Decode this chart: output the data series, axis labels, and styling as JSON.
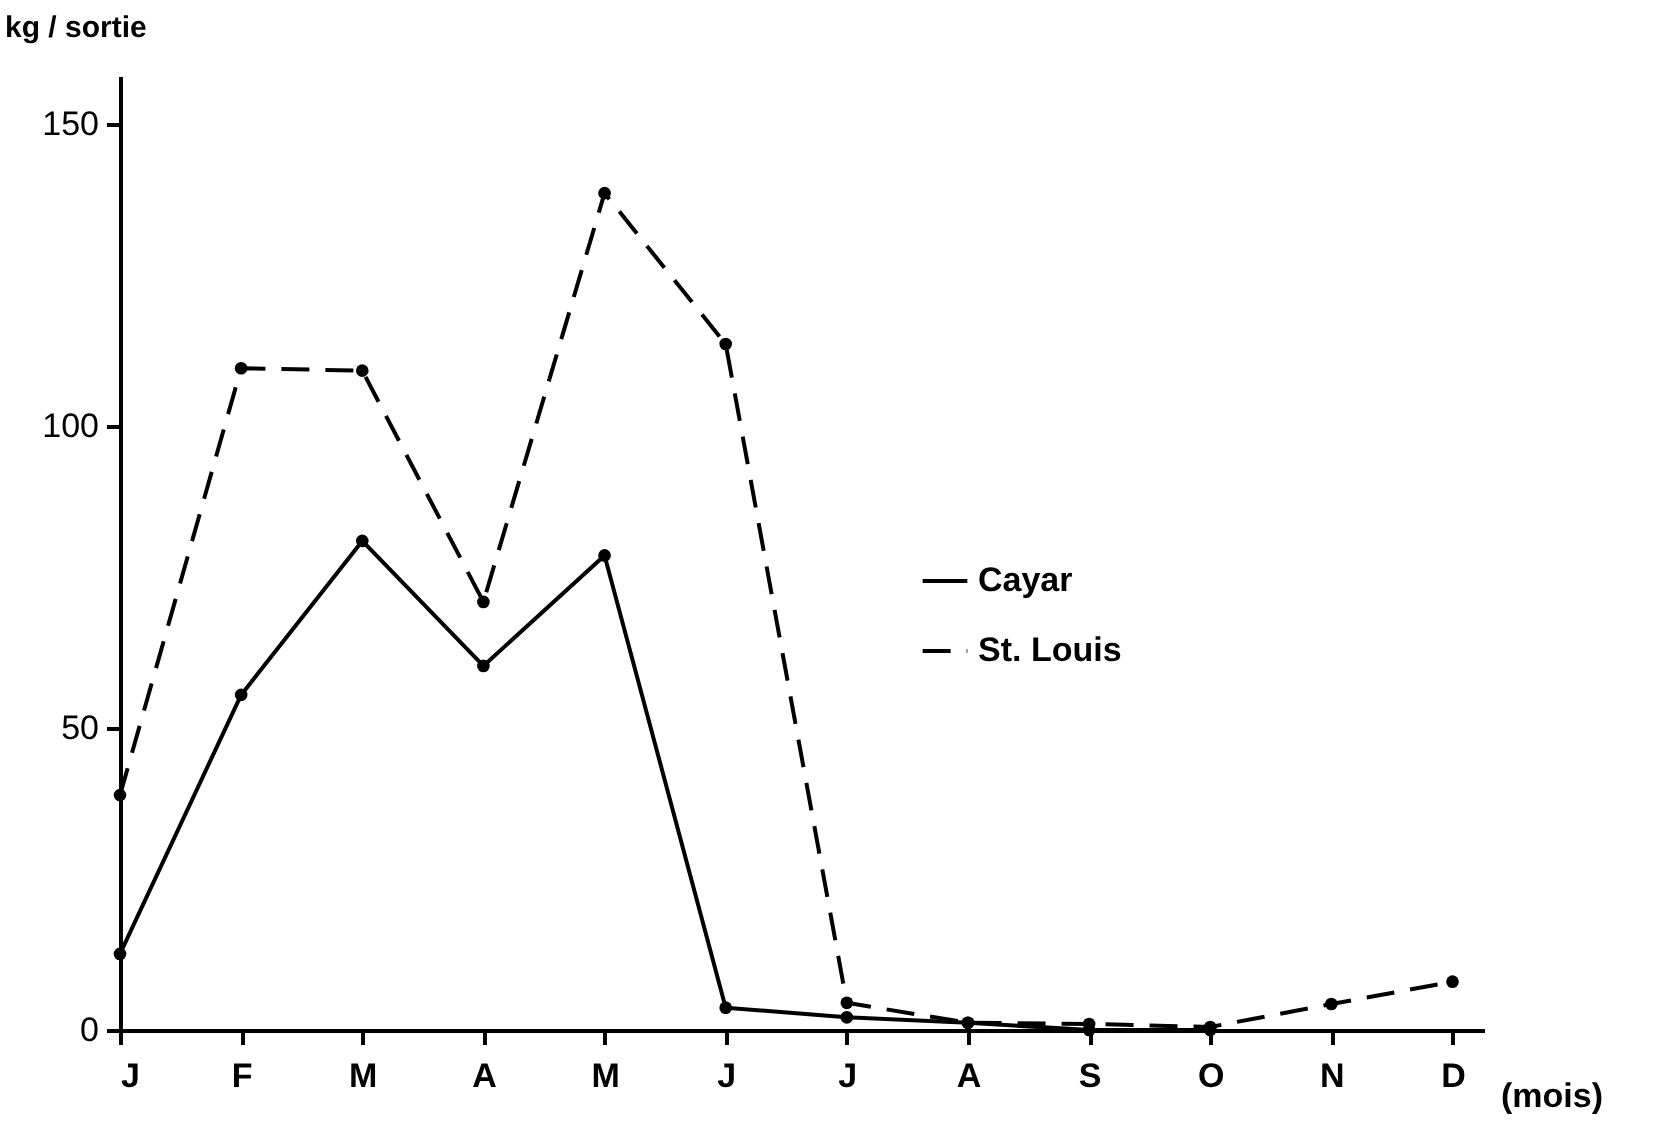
{
  "chart_data": {
    "type": "line",
    "xlabel": "(mois)",
    "ylabel": "kg / sortie",
    "categories": [
      "J",
      "F",
      "M",
      "A",
      "M",
      "J",
      "J",
      "A",
      "S",
      "O",
      "N",
      "D"
    ],
    "series": [
      {
        "name": "Cayar",
        "color": "#000000",
        "line_style": "solid",
        "values": [
          12.6,
          55.5,
          81,
          60.3,
          78.6,
          3.7,
          2.1,
          1.2,
          0,
          0,
          null,
          null
        ]
      },
      {
        "name": "St. Louis",
        "color": "#000000",
        "line_style": "dashed",
        "values": [
          38.9,
          109.6,
          109.2,
          70.9,
          138.6,
          113.6,
          4.5,
          1.2,
          1,
          0.5,
          4.3,
          8
        ]
      }
    ],
    "ylim": [
      0,
      158
    ],
    "yticks": [
      0,
      50,
      100,
      150
    ],
    "grid": false,
    "legend": "right",
    "marker": "circle"
  }
}
